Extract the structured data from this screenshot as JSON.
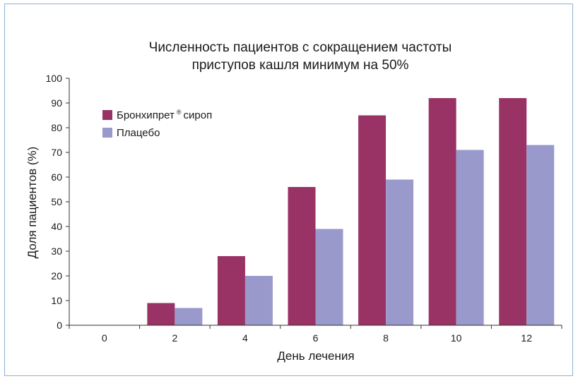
{
  "chart_data": {
    "type": "bar",
    "title_line1": "Численность пациентов с сокращением частоты",
    "title_line2": "приступов кашля минимум на 50%",
    "xlabel": "День лечения",
    "ylabel": "Доля пациентов (%)",
    "categories": [
      "0",
      "2",
      "4",
      "6",
      "8",
      "10",
      "12"
    ],
    "ylim": [
      0,
      100
    ],
    "yticks": [
      0,
      10,
      20,
      30,
      40,
      50,
      60,
      70,
      80,
      90,
      100
    ],
    "legend_position": "top-left",
    "series": [
      {
        "name": "Бронхипрет",
        "name_sup": "®",
        "name_suffix": "сироп",
        "color": "#993366",
        "values": [
          0,
          9,
          28,
          56,
          85,
          92,
          92
        ]
      },
      {
        "name": "Плацебо",
        "color": "#9999cc",
        "values": [
          0,
          7,
          20,
          39,
          59,
          71,
          73
        ]
      }
    ]
  }
}
